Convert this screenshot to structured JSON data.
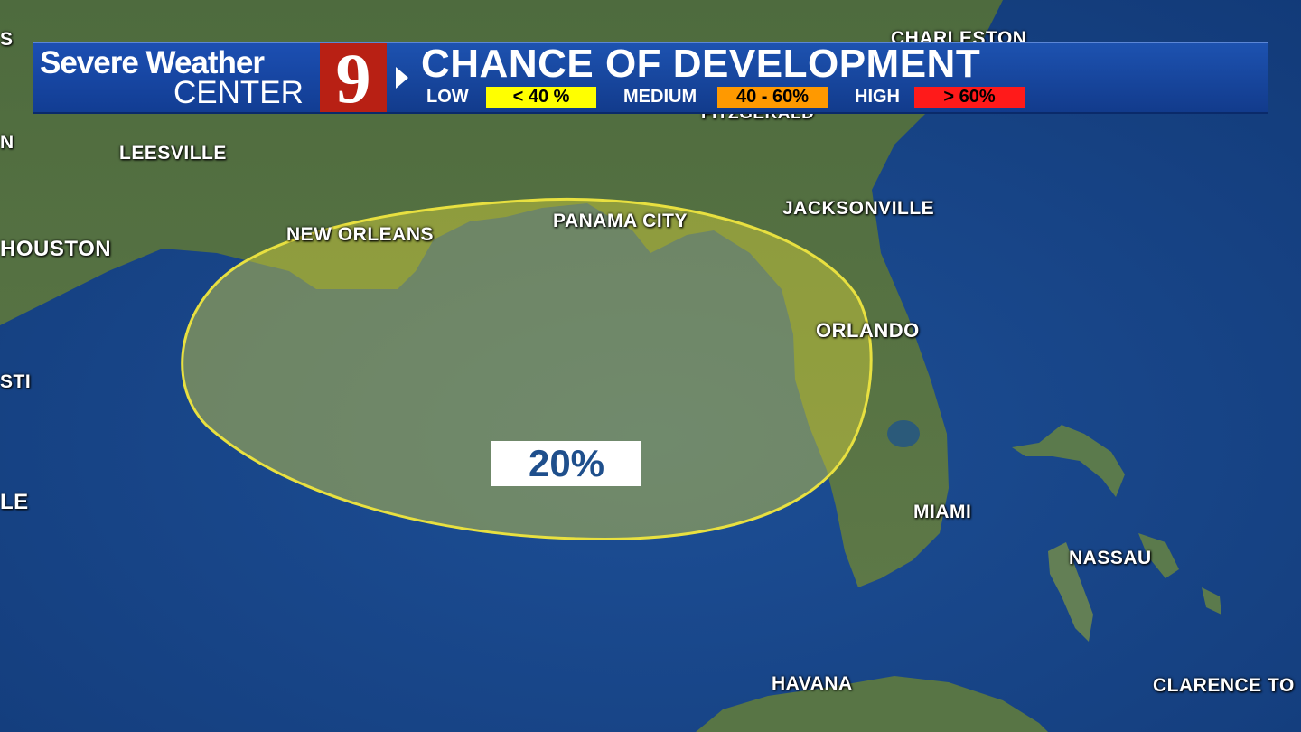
{
  "header": {
    "brand_line1": "Severe Weather",
    "brand_line2": "CENTER",
    "logo_number": "9",
    "title": "CHANCE OF DEVELOPMENT",
    "legend": [
      {
        "level": "LOW",
        "range": "< 40 %",
        "color": "#ffff00"
      },
      {
        "level": "MEDIUM",
        "range": "40 - 60%",
        "color": "#ff9900"
      },
      {
        "level": "HIGH",
        "range": "> 60%",
        "color": "#ff1a1a"
      }
    ]
  },
  "area": {
    "probability": "20%",
    "fill_color": "#d8d23a",
    "outline_color": "#e8e040"
  },
  "cities": {
    "charleston": "CHARLESTON",
    "fitzgerald": "FITZGERALD",
    "leesville": "LEESVILLE",
    "houston": "HOUSTON",
    "new_orleans": "NEW ORLEANS",
    "panama_city": "PANAMA CITY",
    "jacksonville": "JACKSONVILLE",
    "orlando": "ORLANDO",
    "miami": "MIAMI",
    "nassau": "NASSAU",
    "havana": "HAVANA",
    "clarence_town": "CLARENCE TO",
    "edge_sti": "STI",
    "edge_le": "LE",
    "edge_s": "S",
    "edge_n": "N"
  }
}
